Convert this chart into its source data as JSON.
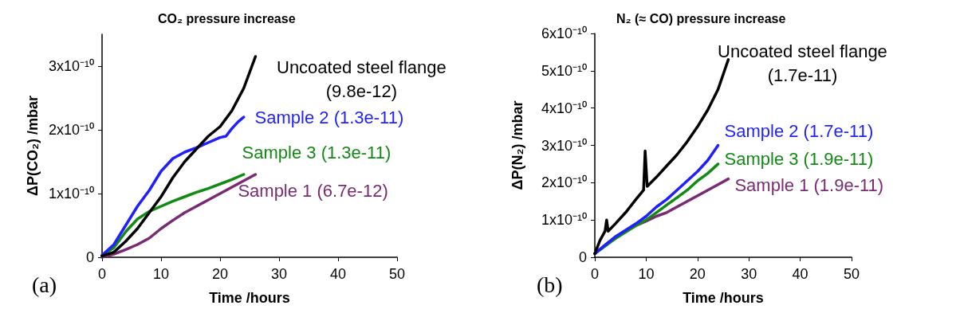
{
  "chart_data": [
    {
      "type": "line",
      "title": "CO₂ pressure increase",
      "xlabel": "Time /hours",
      "ylabel": "ΔP(CO₂) /mbar",
      "annotations": [
        "(a)"
      ],
      "xlim": [
        0,
        50
      ],
      "xticks": [
        0,
        10,
        20,
        30,
        40,
        50
      ],
      "ylim": [
        0,
        3.5e-10
      ],
      "yticks": [
        {
          "value": 0,
          "label": "0"
        },
        {
          "value": 1e-10,
          "label": "1x10⁻¹⁰"
        },
        {
          "value": 2e-10,
          "label": "2x10⁻¹⁰"
        },
        {
          "value": 3e-10,
          "label": "3x10⁻¹⁰"
        }
      ],
      "grid": false,
      "legend": false,
      "marker": "none",
      "line_style": "solid",
      "series": [
        {
          "name": "Uncoated steel flange\n(9.8e-12)",
          "color": "#000000",
          "x": [
            0,
            2,
            4,
            6,
            8,
            10,
            12,
            14,
            16,
            18,
            20,
            22,
            24,
            25,
            26
          ],
          "values": [
            2e-12,
            8e-12,
            2.5e-11,
            4.5e-11,
            7e-11,
            9.5e-11,
            1.25e-10,
            1.5e-10,
            1.7e-10,
            1.9e-10,
            2.05e-10,
            2.3e-10,
            2.65e-10,
            2.9e-10,
            3.15e-10
          ]
        },
        {
          "name": "Sample 2 (1.3e-11)",
          "color": "#1f1fff",
          "x": [
            0,
            2,
            4,
            6,
            8,
            10,
            11,
            12,
            14,
            16,
            18,
            20,
            21,
            22,
            23,
            24
          ],
          "values": [
            3e-12,
            2e-11,
            5e-11,
            8e-11,
            1.05e-10,
            1.35e-10,
            1.45e-10,
            1.55e-10,
            1.65e-10,
            1.72e-10,
            1.8e-10,
            1.88e-10,
            1.9e-10,
            2.02e-10,
            2.12e-10,
            2.2e-10
          ]
        },
        {
          "name": "Sample 3 (1.3e-11)",
          "color": "#138a13",
          "x": [
            0,
            2,
            4,
            6,
            8,
            10,
            12,
            14,
            16,
            18,
            20,
            22,
            24
          ],
          "values": [
            3e-12,
            1.5e-11,
            4e-11,
            6e-11,
            7.2e-11,
            8e-11,
            8.8e-11,
            9.5e-11,
            1.02e-10,
            1.08e-10,
            1.15e-10,
            1.22e-10,
            1.3e-10
          ]
        },
        {
          "name": "Sample 1 (6.7e-12)",
          "color": "#7a2a72",
          "x": [
            0,
            2,
            4,
            6,
            8,
            10,
            12,
            14,
            16,
            18,
            20,
            22,
            24,
            26
          ],
          "values": [
            0,
            5e-12,
            1.2e-11,
            2e-11,
            3e-11,
            4.5e-11,
            5.8e-11,
            7e-11,
            8e-11,
            9e-11,
            1e-10,
            1.1e-10,
            1.2e-10,
            1.3e-10
          ]
        }
      ]
    },
    {
      "type": "line",
      "title": "N₂ (≈ CO) pressure increase",
      "xlabel": "Time /hours",
      "ylabel": "ΔP(N₂) /mbar",
      "annotations": [
        "(b)"
      ],
      "xlim": [
        0,
        50
      ],
      "xticks": [
        0,
        10,
        20,
        30,
        40,
        50
      ],
      "ylim": [
        0,
        6e-10
      ],
      "yticks": [
        {
          "value": 0,
          "label": "0"
        },
        {
          "value": 1e-10,
          "label": "1x10⁻¹⁰"
        },
        {
          "value": 2e-10,
          "label": "2x10⁻¹⁰"
        },
        {
          "value": 3e-10,
          "label": "3x10⁻¹⁰"
        },
        {
          "value": 4e-10,
          "label": "4x10⁻¹⁰"
        },
        {
          "value": 5e-10,
          "label": "5x10⁻¹⁰"
        },
        {
          "value": 6e-10,
          "label": "6x10⁻¹⁰"
        }
      ],
      "grid": false,
      "legend": false,
      "marker": "none",
      "line_style": "solid",
      "series": [
        {
          "name": "Uncoated steel flange\n(1.7e-11)",
          "color": "#000000",
          "x": [
            0,
            1,
            2,
            2.3,
            2.6,
            4,
            6,
            8,
            9.5,
            9.8,
            10.2,
            12,
            14,
            16,
            18,
            20,
            22,
            24,
            25,
            26
          ],
          "values": [
            1e-11,
            4.5e-11,
            7e-11,
            1e-10,
            7e-11,
            9e-11,
            1.2e-10,
            1.55e-10,
            1.8e-10,
            2.85e-10,
            1.9e-10,
            2.15e-10,
            2.45e-10,
            2.75e-10,
            3.1e-10,
            3.5e-10,
            3.95e-10,
            4.5e-10,
            4.9e-10,
            5.3e-10
          ]
        },
        {
          "name": "Sample 2 (1.7e-11)",
          "color": "#1f1fff",
          "x": [
            0,
            4,
            8,
            10,
            12,
            14,
            16,
            18,
            20,
            22,
            24
          ],
          "values": [
            1e-11,
            5.5e-11,
            9e-11,
            1.1e-10,
            1.35e-10,
            1.55e-10,
            1.8e-10,
            2.05e-10,
            2.3e-10,
            2.6e-10,
            3e-10
          ]
        },
        {
          "name": "Sample 3 (1.9e-11)",
          "color": "#138a13",
          "x": [
            0,
            4,
            8,
            10,
            12,
            14,
            16,
            18,
            20,
            22,
            24
          ],
          "values": [
            1e-11,
            5e-11,
            8.5e-11,
            1e-10,
            1.2e-10,
            1.4e-10,
            1.6e-10,
            1.8e-10,
            2.05e-10,
            2.25e-10,
            2.5e-10
          ]
        },
        {
          "name": "Sample 1 (1.9e-11)",
          "color": "#7a2a72",
          "x": [
            0,
            4,
            8,
            10,
            12,
            14,
            16,
            18,
            20,
            22,
            24,
            26
          ],
          "values": [
            1e-11,
            5.5e-11,
            8.5e-11,
            9.7e-11,
            1.1e-10,
            1.2e-10,
            1.35e-10,
            1.5e-10,
            1.65e-10,
            1.8e-10,
            1.95e-10,
            2.1e-10
          ]
        }
      ]
    }
  ]
}
